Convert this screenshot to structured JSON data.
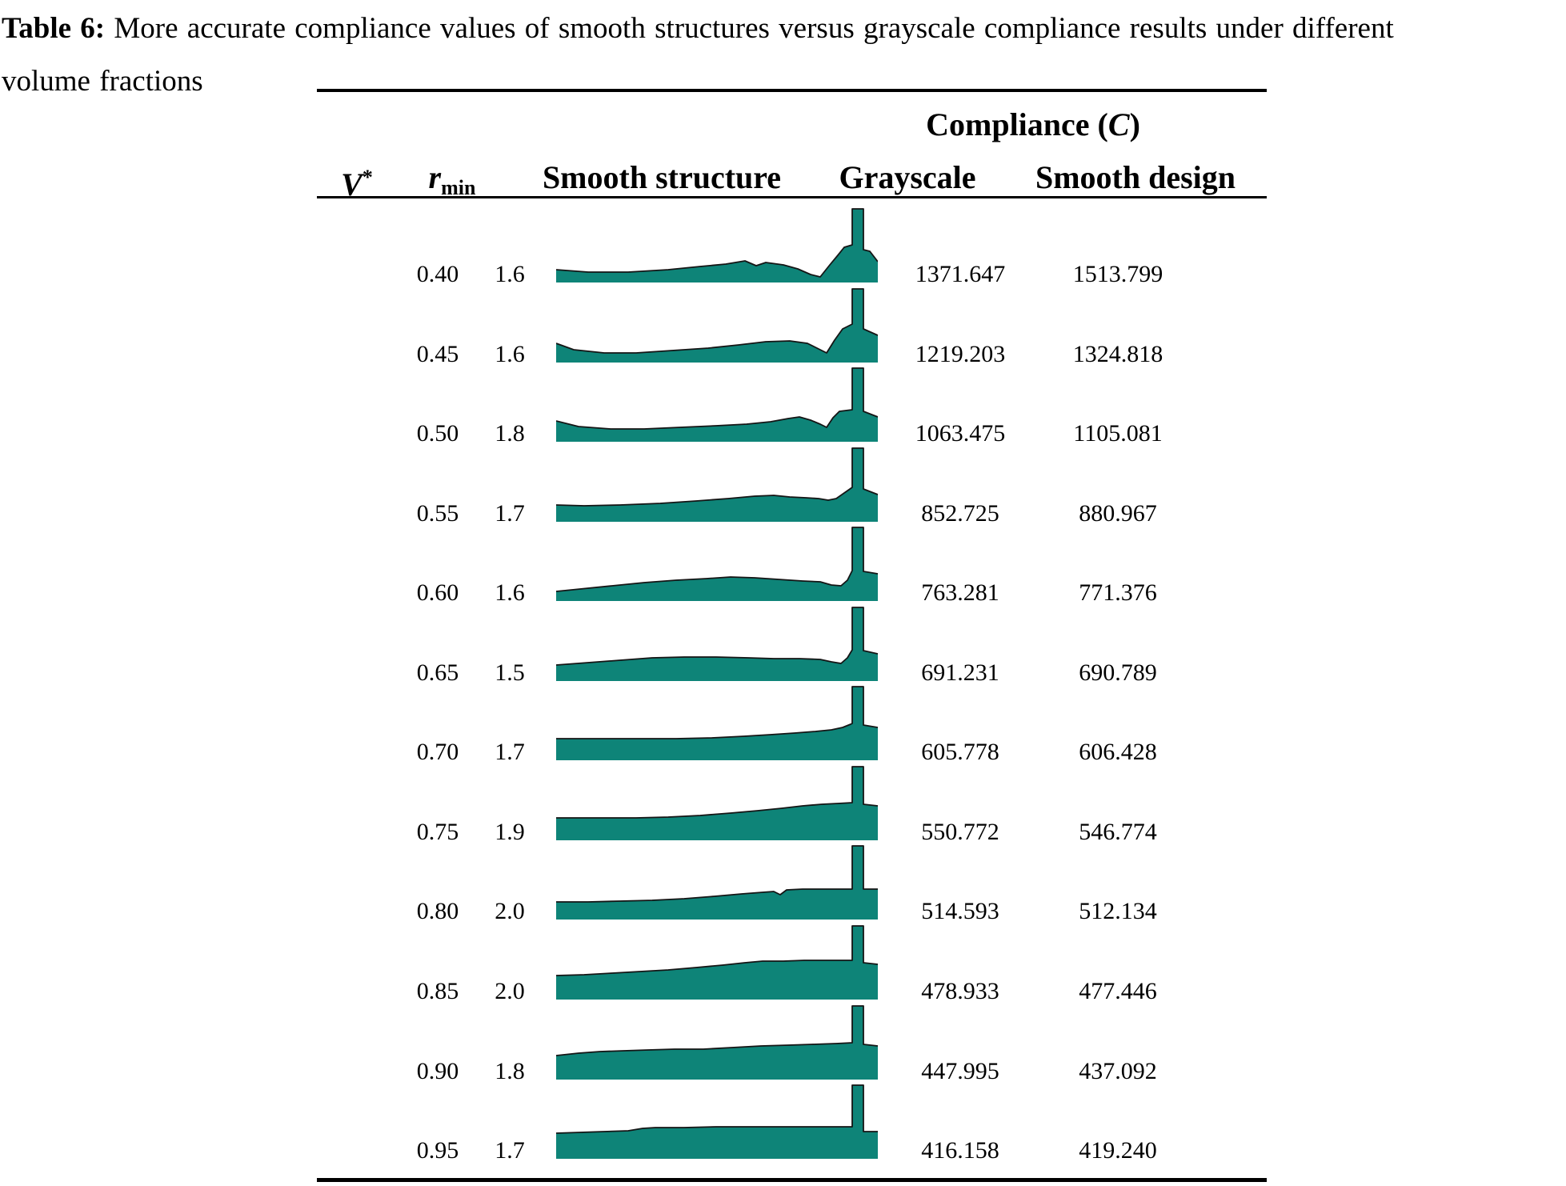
{
  "title": {
    "label": "Table 6:",
    "line1": "More accurate compliance values of smooth structures versus grayscale compliance results under different",
    "line2": "volume fractions"
  },
  "table": {
    "headers": {
      "v_base": "V",
      "v_sup": "*",
      "rmin_base": "r",
      "rmin_sub": "min",
      "smooth_structure": "Smooth structure",
      "compliance_prefix": "Compliance (",
      "compliance_var": "C",
      "compliance_suffix": ")",
      "grayscale": "Grayscale",
      "smooth_design": "Smooth design"
    },
    "rows": [
      {
        "v": "0.40",
        "rmin": "1.6",
        "grayscale": "1371.647",
        "smooth_design": "1513.799",
        "profile": [
          [
            0,
            16
          ],
          [
            40,
            13
          ],
          [
            90,
            13
          ],
          [
            140,
            16
          ],
          [
            180,
            20
          ],
          [
            212,
            23
          ],
          [
            236,
            27
          ],
          [
            250,
            21
          ],
          [
            262,
            25
          ],
          [
            284,
            22
          ],
          [
            302,
            17
          ],
          [
            318,
            10
          ],
          [
            330,
            7
          ],
          [
            342,
            22
          ],
          [
            352,
            34
          ],
          [
            360,
            44
          ],
          [
            370,
            47
          ],
          [
            370,
            92
          ],
          [
            384,
            92
          ],
          [
            384,
            41
          ],
          [
            392,
            39
          ],
          [
            402,
            26
          ]
        ]
      },
      {
        "v": "0.45",
        "rmin": "1.6",
        "grayscale": "1219.203",
        "smooth_design": "1324.818",
        "profile": [
          [
            0,
            24
          ],
          [
            22,
            16
          ],
          [
            60,
            12
          ],
          [
            100,
            12
          ],
          [
            145,
            15
          ],
          [
            190,
            18
          ],
          [
            228,
            22
          ],
          [
            262,
            26
          ],
          [
            292,
            27
          ],
          [
            314,
            24
          ],
          [
            328,
            17
          ],
          [
            338,
            12
          ],
          [
            348,
            28
          ],
          [
            358,
            42
          ],
          [
            370,
            48
          ],
          [
            370,
            92
          ],
          [
            384,
            92
          ],
          [
            384,
            42
          ],
          [
            402,
            34
          ]
        ]
      },
      {
        "v": "0.50",
        "rmin": "1.8",
        "grayscale": "1063.475",
        "smooth_design": "1105.081",
        "profile": [
          [
            0,
            26
          ],
          [
            28,
            19
          ],
          [
            68,
            16
          ],
          [
            110,
            16
          ],
          [
            155,
            18
          ],
          [
            200,
            20
          ],
          [
            238,
            22
          ],
          [
            268,
            25
          ],
          [
            290,
            29
          ],
          [
            304,
            31
          ],
          [
            318,
            27
          ],
          [
            330,
            22
          ],
          [
            338,
            18
          ],
          [
            346,
            30
          ],
          [
            354,
            38
          ],
          [
            370,
            40
          ],
          [
            370,
            92
          ],
          [
            384,
            92
          ],
          [
            384,
            38
          ],
          [
            402,
            31
          ]
        ]
      },
      {
        "v": "0.55",
        "rmin": "1.7",
        "grayscale": "852.725",
        "smooth_design": "880.967",
        "profile": [
          [
            0,
            21
          ],
          [
            35,
            20
          ],
          [
            80,
            21
          ],
          [
            130,
            23
          ],
          [
            175,
            26
          ],
          [
            215,
            29
          ],
          [
            248,
            32
          ],
          [
            272,
            33
          ],
          [
            292,
            31
          ],
          [
            312,
            30
          ],
          [
            328,
            29
          ],
          [
            340,
            27
          ],
          [
            350,
            29
          ],
          [
            360,
            36
          ],
          [
            370,
            43
          ],
          [
            370,
            92
          ],
          [
            384,
            92
          ],
          [
            384,
            41
          ],
          [
            402,
            34
          ]
        ]
      },
      {
        "v": "0.60",
        "rmin": "1.6",
        "grayscale": "763.281",
        "smooth_design": "771.376",
        "profile": [
          [
            0,
            12
          ],
          [
            30,
            15
          ],
          [
            70,
            19
          ],
          [
            110,
            23
          ],
          [
            150,
            26
          ],
          [
            188,
            28
          ],
          [
            218,
            30
          ],
          [
            248,
            29
          ],
          [
            278,
            27
          ],
          [
            308,
            25
          ],
          [
            330,
            24
          ],
          [
            344,
            20
          ],
          [
            356,
            19
          ],
          [
            364,
            26
          ],
          [
            370,
            38
          ],
          [
            370,
            92
          ],
          [
            384,
            92
          ],
          [
            384,
            37
          ],
          [
            402,
            34
          ]
        ]
      },
      {
        "v": "0.65",
        "rmin": "1.5",
        "grayscale": "691.231",
        "smooth_design": "690.789",
        "profile": [
          [
            0,
            20
          ],
          [
            40,
            23
          ],
          [
            80,
            26
          ],
          [
            120,
            29
          ],
          [
            160,
            30
          ],
          [
            200,
            30
          ],
          [
            240,
            29
          ],
          [
            272,
            28
          ],
          [
            304,
            28
          ],
          [
            330,
            27
          ],
          [
            344,
            24
          ],
          [
            356,
            22
          ],
          [
            364,
            29
          ],
          [
            370,
            39
          ],
          [
            370,
            92
          ],
          [
            384,
            92
          ],
          [
            384,
            38
          ],
          [
            402,
            34
          ]
        ]
      },
      {
        "v": "0.70",
        "rmin": "1.7",
        "grayscale": "605.778",
        "smooth_design": "606.428",
        "profile": [
          [
            0,
            27
          ],
          [
            50,
            27
          ],
          [
            100,
            27
          ],
          [
            150,
            27
          ],
          [
            195,
            28
          ],
          [
            235,
            30
          ],
          [
            268,
            32
          ],
          [
            298,
            34
          ],
          [
            324,
            36
          ],
          [
            344,
            38
          ],
          [
            358,
            41
          ],
          [
            368,
            45
          ],
          [
            370,
            46
          ],
          [
            370,
            92
          ],
          [
            384,
            92
          ],
          [
            384,
            44
          ],
          [
            402,
            41
          ]
        ]
      },
      {
        "v": "0.75",
        "rmin": "1.9",
        "grayscale": "550.772",
        "smooth_design": "546.774",
        "profile": [
          [
            0,
            28
          ],
          [
            50,
            28
          ],
          [
            100,
            28
          ],
          [
            140,
            29
          ],
          [
            180,
            31
          ],
          [
            218,
            34
          ],
          [
            252,
            37
          ],
          [
            282,
            40
          ],
          [
            308,
            43
          ],
          [
            332,
            45
          ],
          [
            352,
            46
          ],
          [
            370,
            47
          ],
          [
            370,
            92
          ],
          [
            384,
            92
          ],
          [
            384,
            45
          ],
          [
            402,
            43
          ]
        ]
      },
      {
        "v": "0.80",
        "rmin": "2.0",
        "grayscale": "514.593",
        "smooth_design": "512.134",
        "profile": [
          [
            0,
            22
          ],
          [
            40,
            22
          ],
          [
            80,
            23
          ],
          [
            120,
            24
          ],
          [
            160,
            26
          ],
          [
            198,
            29
          ],
          [
            232,
            32
          ],
          [
            258,
            34
          ],
          [
            272,
            35
          ],
          [
            280,
            31
          ],
          [
            288,
            37
          ],
          [
            308,
            38
          ],
          [
            340,
            38
          ],
          [
            370,
            38
          ],
          [
            370,
            92
          ],
          [
            384,
            92
          ],
          [
            384,
            38
          ],
          [
            402,
            38
          ]
        ]
      },
      {
        "v": "0.85",
        "rmin": "2.0",
        "grayscale": "478.933",
        "smooth_design": "477.446",
        "profile": [
          [
            0,
            30
          ],
          [
            35,
            31
          ],
          [
            70,
            33
          ],
          [
            105,
            35
          ],
          [
            140,
            37
          ],
          [
            175,
            40
          ],
          [
            208,
            43
          ],
          [
            236,
            46
          ],
          [
            258,
            48
          ],
          [
            284,
            48
          ],
          [
            310,
            49
          ],
          [
            340,
            49
          ],
          [
            370,
            49
          ],
          [
            370,
            92
          ],
          [
            384,
            92
          ],
          [
            384,
            46
          ],
          [
            402,
            44
          ]
        ]
      },
      {
        "v": "0.90",
        "rmin": "1.8",
        "grayscale": "447.995",
        "smooth_design": "437.092",
        "profile": [
          [
            0,
            30
          ],
          [
            28,
            33
          ],
          [
            55,
            35
          ],
          [
            85,
            36
          ],
          [
            115,
            37
          ],
          [
            148,
            38
          ],
          [
            184,
            38
          ],
          [
            220,
            40
          ],
          [
            256,
            42
          ],
          [
            290,
            43
          ],
          [
            320,
            44
          ],
          [
            350,
            45
          ],
          [
            370,
            46
          ],
          [
            370,
            92
          ],
          [
            384,
            92
          ],
          [
            384,
            44
          ],
          [
            402,
            42
          ]
        ]
      },
      {
        "v": "0.95",
        "rmin": "1.7",
        "grayscale": "416.158",
        "smooth_design": "419.240",
        "profile": [
          [
            0,
            32
          ],
          [
            30,
            33
          ],
          [
            60,
            34
          ],
          [
            90,
            35
          ],
          [
            108,
            38
          ],
          [
            124,
            39
          ],
          [
            160,
            39
          ],
          [
            200,
            40
          ],
          [
            244,
            40
          ],
          [
            288,
            40
          ],
          [
            330,
            40
          ],
          [
            370,
            40
          ],
          [
            370,
            92
          ],
          [
            384,
            92
          ],
          [
            384,
            34
          ],
          [
            402,
            34
          ]
        ]
      }
    ]
  },
  "colors": {
    "structure_fill": "#0E8478",
    "structure_outline": "#151515",
    "text": "#000000",
    "rule": "#000000"
  },
  "chart_data": {
    "type": "table",
    "title": "Table 6: More accurate compliance values of smooth structures versus grayscale compliance results under different volume fractions",
    "columns": [
      "V*",
      "r_min",
      "Smooth structure",
      "Compliance (C) Grayscale",
      "Compliance (C) Smooth design"
    ],
    "v_star": [
      0.4,
      0.45,
      0.5,
      0.55,
      0.6,
      0.65,
      0.7,
      0.75,
      0.8,
      0.85,
      0.9,
      0.95
    ],
    "r_min": [
      1.6,
      1.6,
      1.8,
      1.7,
      1.6,
      1.5,
      1.7,
      1.9,
      2.0,
      2.0,
      1.8,
      1.7
    ],
    "grayscale_compliance": [
      1371.647,
      1219.203,
      1063.475,
      852.725,
      763.281,
      691.231,
      605.778,
      550.772,
      514.593,
      478.933,
      447.995,
      416.158
    ],
    "smooth_design_compliance": [
      1513.799,
      1324.818,
      1105.081,
      880.967,
      771.376,
      690.789,
      606.428,
      546.774,
      512.134,
      477.446,
      437.092,
      419.24
    ]
  }
}
